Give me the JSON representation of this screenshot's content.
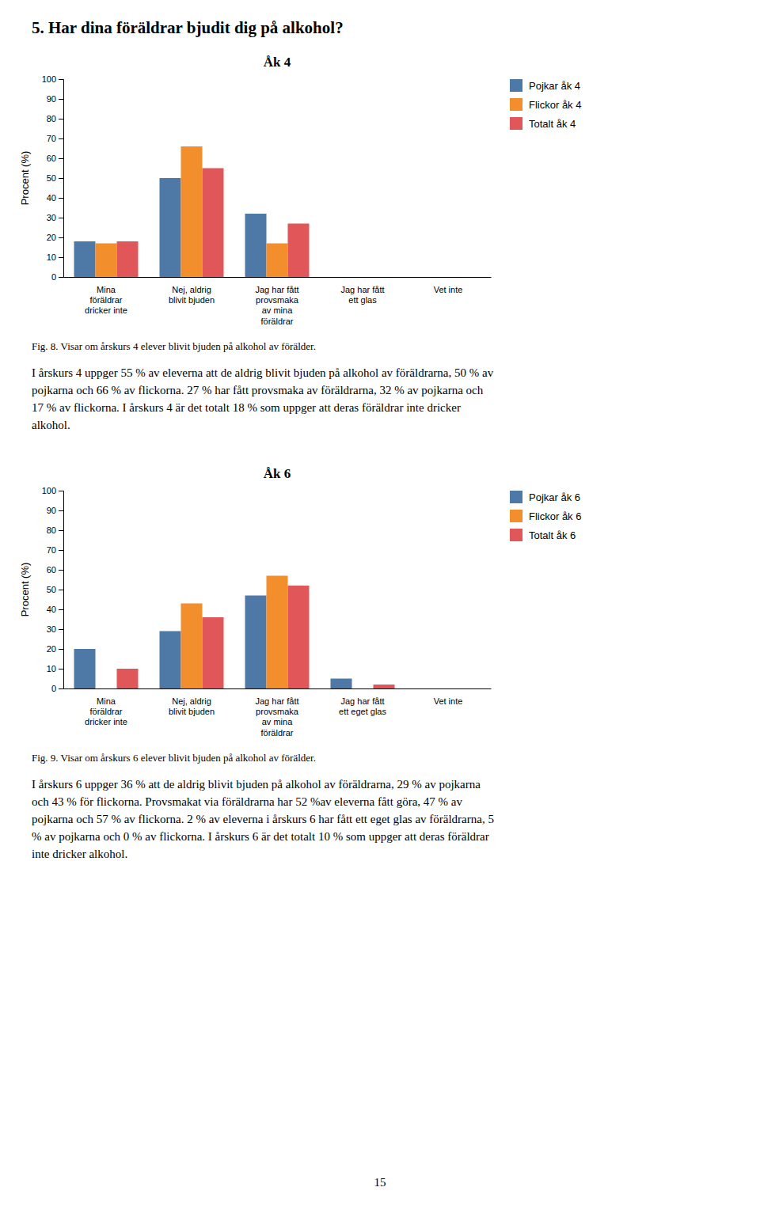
{
  "title": "5. Har dina föräldrar bjudit dig på alkohol?",
  "chart_data": [
    {
      "type": "bar",
      "title": "Åk 4",
      "caption": "Fig. 8. Visar om årskurs 4 elever blivit bjuden på alkohol av förälder.",
      "categories": [
        "Mina\nföräldrar\ndricker inte",
        "Nej, aldrig\nblivit bjuden",
        "Jag har fått\nprovsmaka\nav mina\nföräldrar",
        "Jag har fått\nett glas",
        "Vet inte"
      ],
      "series": [
        {
          "name": "Pojkar åk 4",
          "values": [
            18,
            50,
            32,
            0,
            0
          ]
        },
        {
          "name": "Flickor åk 4",
          "values": [
            17,
            66,
            17,
            0,
            0
          ]
        },
        {
          "name": "Totalt åk 4",
          "values": [
            18,
            55,
            27,
            0,
            0
          ]
        }
      ],
      "y_label": "Procent (%)",
      "ylim": [
        0,
        100
      ],
      "yticks": [
        0,
        10,
        20,
        30,
        40,
        50,
        60,
        70,
        80,
        90,
        100
      ],
      "grid": false,
      "legend": "right"
    },
    {
      "type": "bar",
      "title": "Åk 6",
      "caption": "Fig. 9. Visar om årskurs 6 elever blivit bjuden på alkohol av förälder.",
      "categories": [
        "Mina\nföräldrar\ndricker inte",
        "Nej, aldrig\nblivit bjuden",
        "Jag har fått\nprovsmaka\nav mina\nföräldrar",
        "Jag har fått\nett eget glas",
        "Vet inte"
      ],
      "series": [
        {
          "name": "Pojkar åk 6",
          "values": [
            20,
            29,
            47,
            5,
            0
          ]
        },
        {
          "name": "Flickor åk 6",
          "values": [
            0,
            43,
            57,
            0,
            0
          ]
        },
        {
          "name": "Totalt åk 6",
          "values": [
            10,
            36,
            52,
            2,
            0
          ]
        }
      ],
      "y_label": "Procent (%)",
      "ylim": [
        0,
        100
      ],
      "yticks": [
        0,
        10,
        20,
        30,
        40,
        50,
        60,
        70,
        80,
        90,
        100
      ],
      "grid": false,
      "legend": "right"
    }
  ],
  "paragraphs": [
    [
      "I årskurs 4 uppger 55 % av eleverna att de aldrig blivit bjuden på alkohol av föräldrarna, 50 % av",
      "pojkarna och 66 % av flickorna. 27 % har fått provsmaka av föräldrarna, 32 % av pojkarna och",
      "17 % av flickorna. I årskurs 4 är det totalt 18 % som uppger att deras föräldrar inte dricker",
      "alkohol."
    ],
    [
      "I årskurs 6 uppger 36 % att de aldrig blivit bjuden på alkohol av föräldrarna, 29 % av pojkarna",
      "och 43 % för flickorna. Provsmakat via föräldrarna har 52 %av eleverna fått göra, 47 % av",
      "pojkarna och 57 % av flickorna. 2 % av eleverna i årskurs 6 har fått ett eget glas av föräldrarna, 5",
      "% av pojkarna och 0 % av flickorna. I årskurs 6 är det totalt 10 % som uppger att deras föräldrar",
      "inte dricker alkohol."
    ]
  ],
  "page_number": "15"
}
